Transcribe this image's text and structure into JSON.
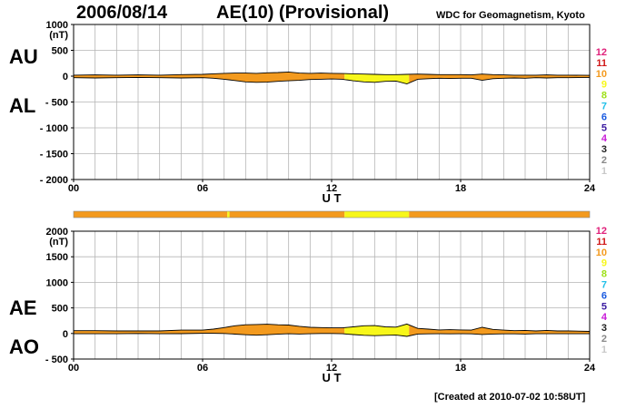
{
  "header": {
    "date": "2006/08/14",
    "title": "AE(10) (Provisional)",
    "source": "WDC for Geomagnetism, Kyoto"
  },
  "footer": {
    "created": "[Created at 2010-07-02 10:58UT]"
  },
  "legend_levels": [
    {
      "label": "12",
      "color": "#e0207a"
    },
    {
      "label": "11",
      "color": "#d01818"
    },
    {
      "label": "10",
      "color": "#f39a1e"
    },
    {
      "label": "9",
      "color": "#f7f71a"
    },
    {
      "label": "8",
      "color": "#9ee01a"
    },
    {
      "label": "7",
      "color": "#22c0e8"
    },
    {
      "label": "6",
      "color": "#1a5ae0"
    },
    {
      "label": "5",
      "color": "#3a1aa0"
    },
    {
      "label": "4",
      "color": "#c81ad8"
    },
    {
      "label": "3",
      "color": "#222222"
    },
    {
      "label": "2",
      "color": "#888888"
    },
    {
      "label": "1",
      "color": "#c8c8c8"
    }
  ],
  "station_bar": [
    {
      "from": 0,
      "to": 7.15,
      "level": "10"
    },
    {
      "from": 7.15,
      "to": 7.25,
      "level": "9"
    },
    {
      "from": 7.25,
      "to": 12.6,
      "level": "10"
    },
    {
      "from": 12.6,
      "to": 15.6,
      "level": "9"
    },
    {
      "from": 15.6,
      "to": 24,
      "level": "10"
    }
  ],
  "chart_data": [
    {
      "type": "area",
      "panel_labels": [
        "AU",
        "AL"
      ],
      "yunit": "(nT)",
      "xlabel": "U T",
      "xticks": [
        "00",
        "06",
        "12",
        "18",
        "24"
      ],
      "xlim": [
        0,
        24
      ],
      "ylim": [
        -2000,
        1000
      ],
      "yticks": [
        1000,
        500,
        0,
        -500,
        -1000,
        -1500,
        -2000
      ],
      "ytick_labels": [
        "1000",
        "500",
        "0",
        "- 500",
        "- 1000",
        "- 1500",
        "- 2000"
      ],
      "grid": true,
      "hours": [
        0,
        1,
        2,
        3,
        4,
        5,
        6,
        6.5,
        7,
        7.5,
        8,
        8.5,
        9,
        9.5,
        10,
        10.5,
        11,
        11.5,
        12,
        12.5,
        13,
        13.5,
        14,
        14.5,
        15,
        15.5,
        16,
        16.5,
        17,
        17.5,
        18,
        18.5,
        19,
        19.5,
        20,
        20.5,
        21,
        21.5,
        22,
        22.5,
        23,
        24
      ],
      "series": [
        {
          "name": "AU",
          "values": [
            20,
            25,
            20,
            25,
            20,
            30,
            35,
            45,
            55,
            60,
            60,
            55,
            65,
            70,
            80,
            60,
            55,
            60,
            55,
            50,
            45,
            40,
            35,
            30,
            30,
            35,
            40,
            35,
            30,
            30,
            30,
            25,
            40,
            30,
            25,
            20,
            20,
            20,
            25,
            20,
            20,
            15
          ]
        },
        {
          "name": "AL",
          "values": [
            -30,
            -35,
            -30,
            -25,
            -30,
            -35,
            -30,
            -40,
            -60,
            -85,
            -110,
            -120,
            -115,
            -100,
            -90,
            -80,
            -65,
            -60,
            -55,
            -60,
            -90,
            -110,
            -120,
            -100,
            -95,
            -150,
            -60,
            -50,
            -40,
            -45,
            -40,
            -40,
            -80,
            -50,
            -40,
            -35,
            -40,
            -30,
            -35,
            -30,
            -30,
            -25
          ]
        }
      ],
      "fill_segments": [
        {
          "from": 0,
          "to": 12.6,
          "level": "10"
        },
        {
          "from": 12.6,
          "to": 15.6,
          "level": "9"
        },
        {
          "from": 15.6,
          "to": 24,
          "level": "10"
        }
      ]
    },
    {
      "type": "area",
      "panel_labels": [
        "AE",
        "AO"
      ],
      "yunit": "(nT)",
      "xlabel": "U T",
      "xticks": [
        "00",
        "06",
        "12",
        "18",
        "24"
      ],
      "xlim": [
        0,
        24
      ],
      "ylim": [
        -500,
        2000
      ],
      "yticks": [
        2000,
        1500,
        1000,
        500,
        0,
        -500
      ],
      "ytick_labels": [
        "2000",
        "1500",
        "1000",
        "500",
        "0",
        "- 500"
      ],
      "grid": true,
      "hours": [
        0,
        1,
        2,
        3,
        4,
        5,
        6,
        6.5,
        7,
        7.5,
        8,
        8.5,
        9,
        9.5,
        10,
        10.5,
        11,
        11.5,
        12,
        12.5,
        13,
        13.5,
        14,
        14.5,
        15,
        15.5,
        16,
        16.5,
        17,
        17.5,
        18,
        18.5,
        19,
        19.5,
        20,
        20.5,
        21,
        21.5,
        22,
        22.5,
        23,
        24
      ],
      "series": [
        {
          "name": "AE",
          "values": [
            55,
            55,
            50,
            50,
            50,
            65,
            65,
            85,
            115,
            150,
            170,
            175,
            180,
            170,
            165,
            140,
            120,
            115,
            110,
            110,
            130,
            150,
            155,
            130,
            125,
            185,
            100,
            85,
            70,
            75,
            70,
            65,
            120,
            80,
            65,
            55,
            60,
            50,
            60,
            50,
            50,
            40
          ]
        },
        {
          "name": "AO",
          "values": [
            -5,
            -5,
            -5,
            0,
            -5,
            -3,
            3,
            3,
            0,
            -12,
            -25,
            -33,
            -25,
            -15,
            -5,
            -10,
            -5,
            0,
            0,
            -5,
            -22,
            -35,
            -42,
            -35,
            -32,
            -57,
            -10,
            -7,
            -5,
            -7,
            -5,
            -7,
            -20,
            -10,
            -7,
            -7,
            -10,
            -5,
            -5,
            -5,
            -5,
            -5
          ]
        }
      ],
      "fill_segments": [
        {
          "from": 0,
          "to": 12.6,
          "level": "10"
        },
        {
          "from": 12.6,
          "to": 15.6,
          "level": "9"
        },
        {
          "from": 15.6,
          "to": 24,
          "level": "10"
        }
      ]
    }
  ]
}
